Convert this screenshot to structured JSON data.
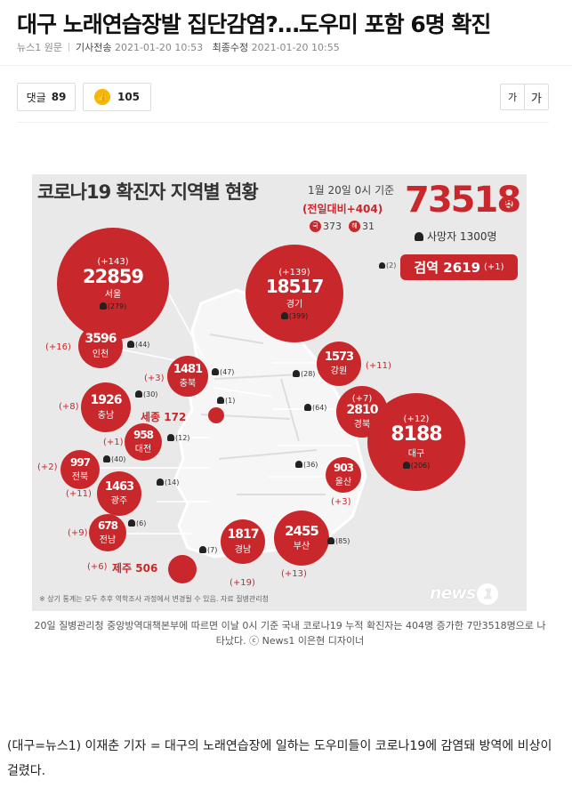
{
  "article": {
    "headline": "대구 노래연습장발 집단감염?…도우미 포함 6명 확진",
    "source": "뉴스1 원문",
    "sent_label": "기사전송",
    "sent_time": "2021-01-20 10:53",
    "modified_label": "최종수정",
    "modified_time": "2021-01-20 10:55"
  },
  "toolbar": {
    "comment_label": "댓글",
    "comment_count": "89",
    "like_icon": "thumbs-up-icon",
    "like_count": "105",
    "font_small": "가",
    "font_large": "가"
  },
  "infographic": {
    "title": "코로나19 확진자 지역별 현황",
    "date": "1월 20일 0시 기준",
    "delta": "(전일대비+404)",
    "domestic_tag": "국",
    "domestic": "373",
    "overseas_tag": "해",
    "overseas": "31",
    "total": "73518",
    "total_unit": "명",
    "deaths": "사망자 1300명",
    "test_note": "(2)",
    "test_label": "검역",
    "test_value": "2619",
    "test_inc": "(+1)",
    "footnote": "※ 상기 통계는 모두 추후 역학조사 과정에서 변경될 수 있음.  자료 질병관리청",
    "logo": "news",
    "logo_num": "1",
    "accent_color": "#c8282b",
    "regions": {
      "seoul": {
        "inc": "(+143)",
        "num": "22859",
        "name": "서울",
        "deaths": "(279)"
      },
      "gyeonggi": {
        "inc": "(+139)",
        "num": "18517",
        "name": "경기",
        "deaths": "(399)"
      },
      "incheon": {
        "inc": "(+16)",
        "num": "3596",
        "name": "인천",
        "deaths": "(44)"
      },
      "chungbuk": {
        "inc": "(+3)",
        "num": "1481",
        "name": "충북",
        "deaths": "(47)"
      },
      "gangwon": {
        "inc": "(+11)",
        "num": "1573",
        "name": "강원",
        "deaths": "(28)"
      },
      "chungnam": {
        "inc": "(+8)",
        "num": "1926",
        "name": "충남",
        "deaths": "(30)"
      },
      "sejong": {
        "label": "세종 172",
        "deaths": "(1)"
      },
      "gyeongbuk": {
        "inc": "(+7)",
        "num": "2810",
        "name": "경북",
        "deaths": "(64)"
      },
      "daegu": {
        "inc": "(+12)",
        "num": "8188",
        "name": "대구",
        "deaths": "(206)"
      },
      "daejeon": {
        "inc": "(+1)",
        "num": "958",
        "name": "대전",
        "deaths": "(12)"
      },
      "jeonbuk": {
        "inc": "(+2)",
        "num": "997",
        "name": "전북",
        "deaths": "(40)"
      },
      "ulsan": {
        "inc": "(+3)",
        "num": "903",
        "name": "울산",
        "deaths": "(36)"
      },
      "gwangju": {
        "inc": "(+11)",
        "num": "1463",
        "name": "광주",
        "deaths": "(14)"
      },
      "jeonnam": {
        "inc": "(+9)",
        "num": "678",
        "name": "전남",
        "deaths": "(6)"
      },
      "gyeongnam": {
        "inc": "(+19)",
        "num": "1817",
        "name": "경남",
        "deaths": "(7)"
      },
      "busan": {
        "inc": "(+13)",
        "num": "2455",
        "name": "부산",
        "deaths": "(85)"
      },
      "jeju": {
        "inc": "(+6)",
        "label": "제주 506"
      }
    }
  },
  "caption": "20일 질병관리청 중앙방역대책본부에 따르면 이날 0시 기준 국내 코로나19 누적 확진자는 404명 증가한 7만3518명으로 나타났다. ⓒ News1 이은현 디자이너",
  "body": "(대구=뉴스1) 이재춘 기자 = 대구의 노래연습장에 일하는 도우미들이 코로나19에 감염돼 방역에 비상이 걸렸다."
}
